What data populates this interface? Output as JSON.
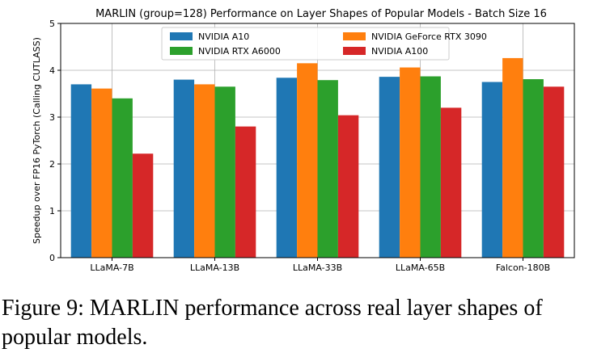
{
  "chart_data": {
    "type": "bar",
    "title": "MARLIN (group=128) Performance on Layer Shapes of Popular Models - Batch Size 16",
    "xlabel": "",
    "ylabel": "Speedup over FP16 PyTorch (Calling CUTLASS)",
    "ylim": [
      0,
      5
    ],
    "yticks": [
      0,
      1,
      2,
      3,
      4,
      5
    ],
    "grid": true,
    "legend_position": "top-center",
    "categories": [
      "LLaMA-7B",
      "LLaMA-13B",
      "LLaMA-33B",
      "LLaMA-65B",
      "Falcon-180B"
    ],
    "series": [
      {
        "name": "NVIDIA A10",
        "color": "#1f77b4",
        "values": [
          3.7,
          3.8,
          3.84,
          3.86,
          3.75
        ]
      },
      {
        "name": "NVIDIA GeForce RTX 3090",
        "color": "#ff7f0e",
        "values": [
          3.61,
          3.7,
          4.15,
          4.06,
          4.26
        ]
      },
      {
        "name": "NVIDIA RTX A6000",
        "color": "#2ca02c",
        "values": [
          3.4,
          3.65,
          3.79,
          3.87,
          3.81
        ]
      },
      {
        "name": "NVIDIA A100",
        "color": "#d62728",
        "values": [
          2.22,
          2.8,
          3.04,
          3.2,
          3.65
        ]
      }
    ]
  },
  "caption": "Figure 9: MARLIN performance across real layer shapes of popular models."
}
